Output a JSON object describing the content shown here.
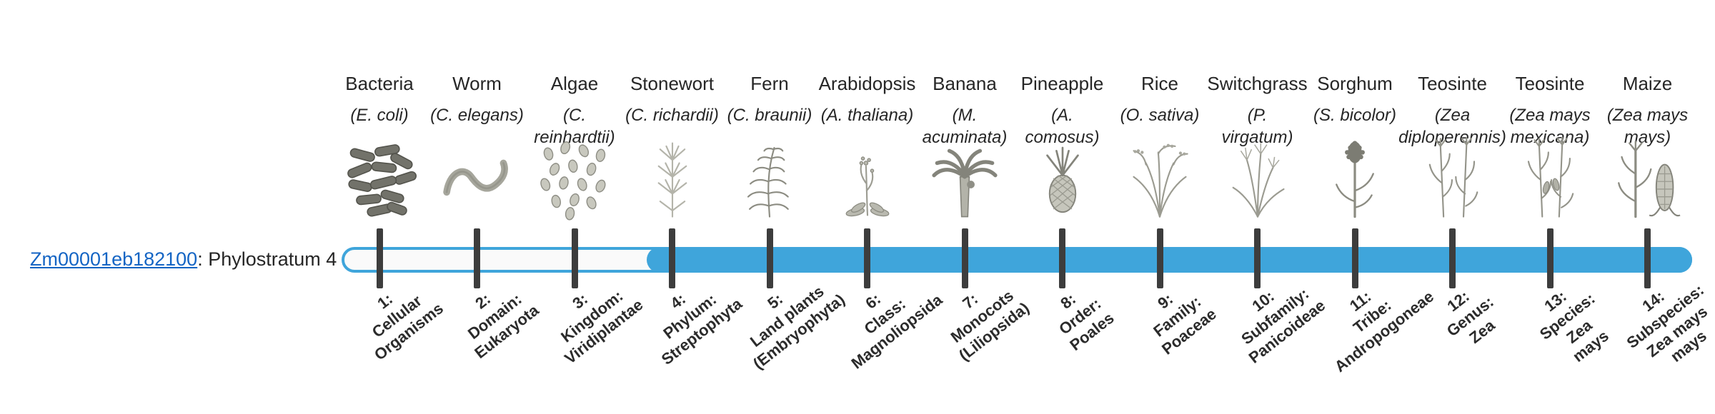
{
  "gene": {
    "id": "Zm00001eb182100",
    "suffix": ": Phylostratum 4"
  },
  "colors": {
    "bar_blue": "#3FA5DB",
    "tick_dark": "#3D3D3D",
    "link_blue": "#1565C4",
    "text": "#262626"
  },
  "chart_data": {
    "type": "timeline",
    "title": "Zm00001eb182100: Phylostratum 4",
    "gene_id": "Zm00001eb182100",
    "phylostratum": 4,
    "fill_start_stratum": 4,
    "strata_count": 14,
    "legend_position": "none",
    "categories": [
      "1: Cellular Organisms",
      "2: Domain: Eukaryota",
      "3: Kingdom: Viridiplantae",
      "4: Phylum: Streptophyta",
      "5: Land plants (Embryophyta)",
      "6: Class: Magnoliopsida",
      "7: Monocots (Liliopsida)",
      "8: Order: Poales",
      "9: Family: Poaceae",
      "10: Subfamily: Panicoideae",
      "11: Tribe: Andropogoneae",
      "12: Genus: Zea",
      "13: Species: Zea mays",
      "14: Subspecies: Zea mays mays"
    ],
    "columns": [
      {
        "stratum": 1,
        "common": "Bacteria",
        "scientific": "(E. coli)",
        "stage": "1:\nCellular\nOrganisms",
        "icon": "bacteria-icon"
      },
      {
        "stratum": 2,
        "common": "Worm",
        "scientific": "(C. elegans)",
        "stage": "2:\nDomain:\nEukaryota",
        "icon": "worm-icon"
      },
      {
        "stratum": 3,
        "common": "Algae",
        "scientific": "(C.\nreinhardtii)",
        "stage": "3:\nKingdom:\nViridiplantae",
        "icon": "algae-icon"
      },
      {
        "stratum": 4,
        "common": "Stonewort",
        "scientific": "(C. richardii)",
        "stage": "4:\nPhylum:\nStreptophyta",
        "icon": "stonewort-icon"
      },
      {
        "stratum": 5,
        "common": "Fern",
        "scientific": "(C. braunii)",
        "stage": "5:\nLand plants\n(Embryophyta)",
        "icon": "fern-icon"
      },
      {
        "stratum": 6,
        "common": "Arabidopsis",
        "scientific": "(A. thaliana)",
        "stage": "6:\nClass:\nMagnoliopsida",
        "icon": "arabidopsis-icon"
      },
      {
        "stratum": 7,
        "common": "Banana",
        "scientific": "(M.\nacuminata)",
        "stage": "7:\nMonocots\n(Liliopsida)",
        "icon": "banana-icon"
      },
      {
        "stratum": 8,
        "common": "Pineapple",
        "scientific": "(A.\ncomosus)",
        "stage": "8:\nOrder:\nPoales",
        "icon": "pineapple-icon"
      },
      {
        "stratum": 9,
        "common": "Rice",
        "scientific": "(O. sativa)",
        "stage": "9:\nFamily:\nPoaceae",
        "icon": "rice-icon"
      },
      {
        "stratum": 10,
        "common": "Switchgrass",
        "scientific": "(P.\nvirgatum)",
        "stage": "10:\nSubfamily:\nPanicoideae",
        "icon": "switchgrass-icon"
      },
      {
        "stratum": 11,
        "common": "Sorghum",
        "scientific": "(S. bicolor)",
        "stage": "11:\nTribe:\nAndropogoneae",
        "icon": "sorghum-icon"
      },
      {
        "stratum": 12,
        "common": "Teosinte",
        "scientific": "(Zea\ndiploperennis)",
        "stage": "12:\nGenus:\nZea",
        "icon": "teosinte-diploperennis-icon"
      },
      {
        "stratum": 13,
        "common": "Teosinte",
        "scientific": "(Zea mays\nmexicana)",
        "stage": "13:\nSpecies:\nZea\nmays",
        "icon": "teosinte-mexicana-icon"
      },
      {
        "stratum": 14,
        "common": "Maize",
        "scientific": "(Zea mays\nmays)",
        "stage": "14:\nSubspecies:\nZea mays\nmays",
        "icon": "maize-icon"
      }
    ]
  }
}
